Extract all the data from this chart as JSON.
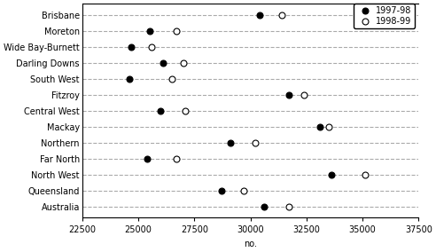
{
  "categories": [
    "Brisbane",
    "Moreton",
    "Wide Bay-Burnett",
    "Darling Downs",
    "South West",
    "Fitzroy",
    "Central West",
    "Mackay",
    "Northern",
    "Far North",
    "North West",
    "Queensland",
    "Australia"
  ],
  "values_1997": [
    30400,
    25500,
    24700,
    26100,
    24600,
    31700,
    26000,
    33100,
    29100,
    25400,
    33600,
    28700,
    30600
  ],
  "values_1998": [
    31400,
    26700,
    25600,
    27000,
    26500,
    32400,
    27100,
    33500,
    30200,
    26700,
    35100,
    29700,
    31700
  ],
  "xlim": [
    22500,
    37500
  ],
  "xticks": [
    22500,
    25000,
    27500,
    30000,
    32500,
    35000,
    37500
  ],
  "xlabel": "no.",
  "legend_labels": [
    "1997-98",
    "1998-99"
  ],
  "color_filled": "black",
  "color_open": "white",
  "marker_size": 5,
  "dash_color": "#aaaaaa",
  "dash_linewidth": 0.8,
  "label_fontsize": 7,
  "tick_fontsize": 7,
  "legend_fontsize": 7
}
